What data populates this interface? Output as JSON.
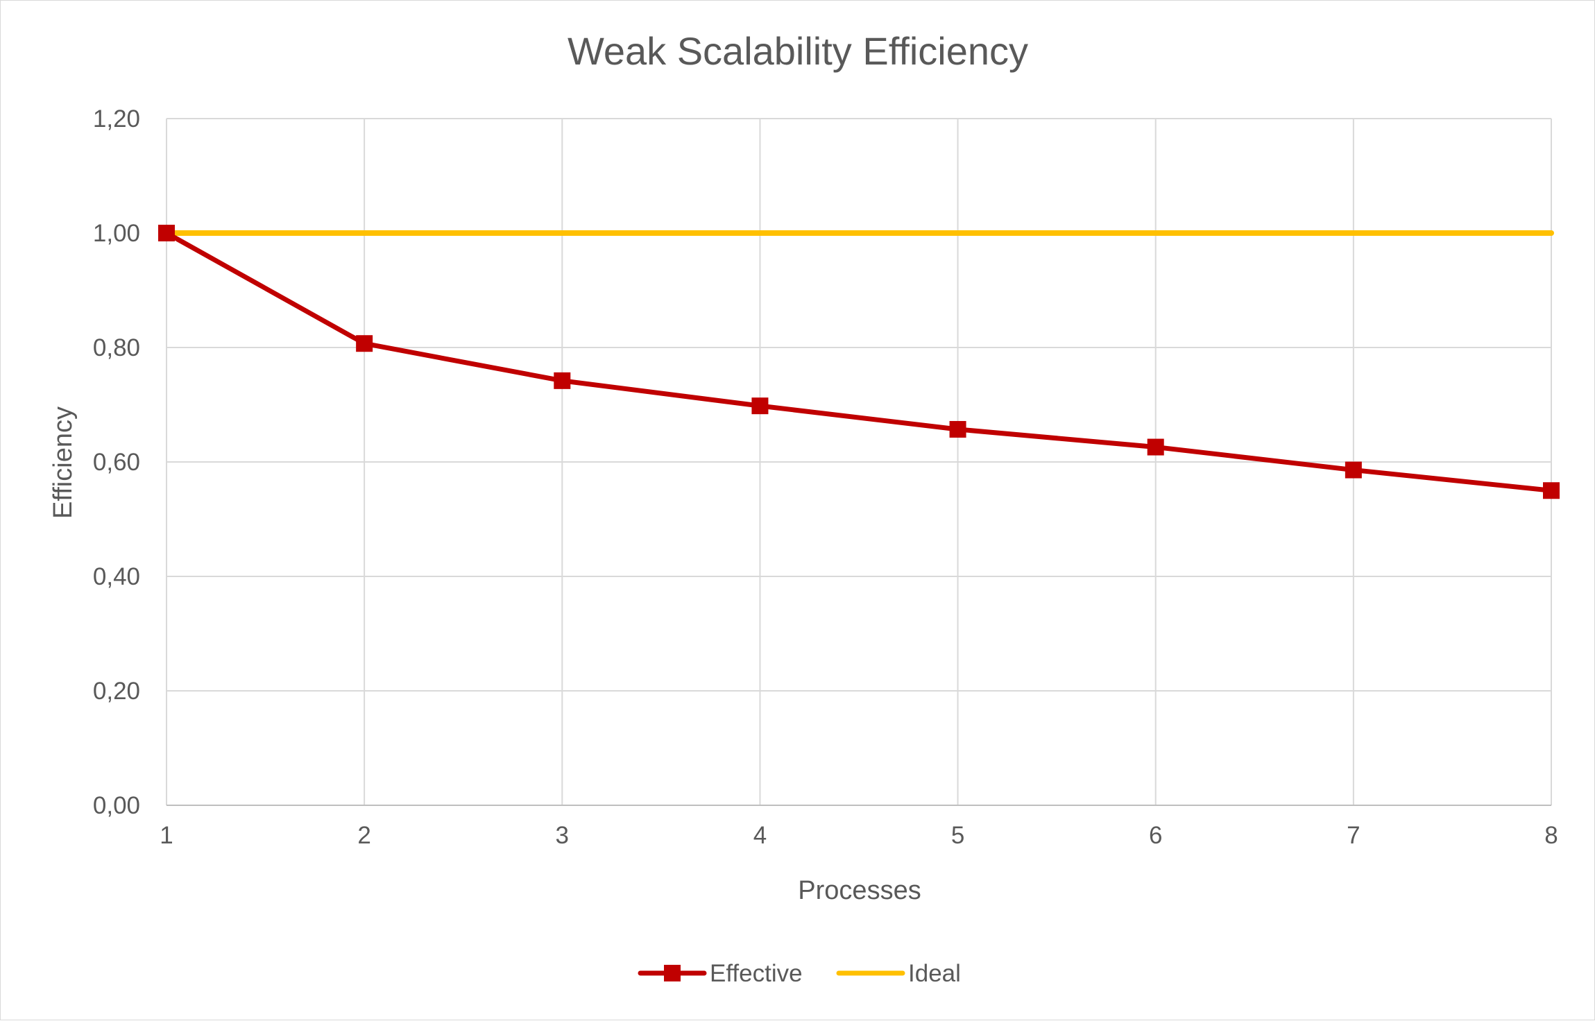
{
  "chart_data": {
    "type": "line",
    "title": "Weak Scalability Efficiency",
    "xlabel": "Processes",
    "ylabel": "Efficiency",
    "x": [
      1,
      2,
      3,
      4,
      5,
      6,
      7,
      8
    ],
    "x_tick_labels": [
      "1",
      "2",
      "3",
      "4",
      "5",
      "6",
      "7",
      "8"
    ],
    "y_tick_labels": [
      "0,00",
      "0,20",
      "0,40",
      "0,60",
      "0,80",
      "1,00",
      "1,20"
    ],
    "y_ticks": [
      0,
      0.2,
      0.4,
      0.6,
      0.8,
      1.0,
      1.2
    ],
    "ylim": [
      0,
      1.2
    ],
    "xlim": [
      1,
      8
    ],
    "grid": true,
    "legend_position": "bottom",
    "series": [
      {
        "name": "Effective",
        "color": "#c00000",
        "marker": "square",
        "values": [
          1.0,
          0.807,
          0.742,
          0.698,
          0.657,
          0.626,
          0.586,
          0.55
        ]
      },
      {
        "name": "Ideal",
        "color": "#ffc000",
        "marker": "none",
        "values": [
          1.0,
          1.0,
          1.0,
          1.0,
          1.0,
          1.0,
          1.0,
          1.0
        ]
      }
    ]
  }
}
